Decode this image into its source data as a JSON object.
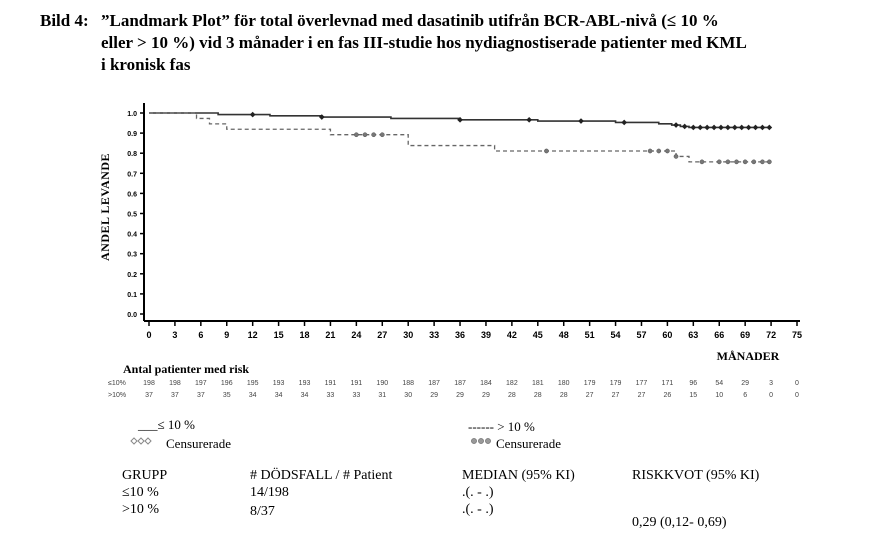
{
  "caption": {
    "label": "Bild 4:",
    "line1": "”Landmark Plot” för total överlevnad med dasatinib utifrån BCR-ABL-nivå (≤ 10 %",
    "line2": "eller > 10 %) vid 3 månader i en fas III-studie hos nydiagnostiserade patienter med KML",
    "line3": "i kronisk fas"
  },
  "chart_data": {
    "type": "line",
    "title": "”Landmark Plot” för total överlevnad med dasatinib utifrån BCR-ABL-nivå",
    "xlabel": "MÅNADER",
    "ylabel": "ANDEL LEVANDE",
    "xlim": [
      0,
      75
    ],
    "ylim": [
      0.0,
      1.0
    ],
    "x_ticks": [
      0,
      3,
      6,
      9,
      12,
      15,
      18,
      21,
      24,
      27,
      30,
      33,
      36,
      39,
      42,
      45,
      48,
      51,
      54,
      57,
      60,
      63,
      66,
      69,
      72,
      75
    ],
    "x_tick_labels": [
      "0",
      "3",
      "6",
      "9",
      "12",
      "15",
      "18",
      "21",
      "24",
      "27",
      "30",
      "33",
      "36",
      "39",
      "42",
      "45",
      "48",
      "51",
      "54",
      "57",
      "60",
      "63",
      "66",
      "69",
      "72",
      "75"
    ],
    "y_ticks": [
      0.0,
      0.1,
      0.2,
      0.3,
      0.4,
      0.5,
      0.6,
      0.7,
      0.8,
      0.9,
      1.0
    ],
    "y_tick_labels": [
      "0.0",
      "0.1",
      "0.2",
      "0.3",
      "0.4",
      "0.5",
      "0.6",
      "0.7",
      "0.8",
      "0.9",
      "1.0"
    ],
    "series": [
      {
        "name": "≤ 10 %",
        "style": "solid",
        "color": "#333333",
        "steps": [
          [
            0,
            1.0
          ],
          [
            8,
            0.992
          ],
          [
            14,
            0.986
          ],
          [
            20,
            0.98
          ],
          [
            28,
            0.973
          ],
          [
            36,
            0.966
          ],
          [
            45,
            0.96
          ],
          [
            54,
            0.953
          ],
          [
            59,
            0.946
          ],
          [
            60.5,
            0.94
          ],
          [
            61.5,
            0.933
          ],
          [
            62.5,
            0.928
          ],
          [
            72,
            0.928
          ]
        ],
        "censored": [
          12,
          20,
          36,
          44,
          50,
          55,
          61,
          62,
          63,
          63.8,
          64.6,
          65.4,
          66.2,
          67,
          67.8,
          68.6,
          69.4,
          70.2,
          71,
          71.8
        ]
      },
      {
        "name": "> 10 %",
        "style": "dashed",
        "color": "#666666",
        "steps": [
          [
            0,
            1.0
          ],
          [
            5.5,
            0.973
          ],
          [
            7,
            0.946
          ],
          [
            9,
            0.919
          ],
          [
            21,
            0.892
          ],
          [
            30,
            0.838
          ],
          [
            40,
            0.811
          ],
          [
            61,
            0.784
          ],
          [
            62.5,
            0.757
          ],
          [
            72,
            0.757
          ]
        ],
        "censored": [
          24,
          25,
          26,
          27,
          46,
          58,
          59,
          60,
          61,
          64,
          66,
          67,
          68,
          69,
          70,
          71,
          71.8
        ]
      }
    ],
    "risk_table": {
      "title": "Antal patienter med risk",
      "times": [
        0,
        3,
        6,
        9,
        12,
        15,
        18,
        21,
        24,
        27,
        30,
        33,
        36,
        39,
        42,
        45,
        48,
        51,
        54,
        57,
        60,
        63,
        66,
        69,
        72,
        75
      ],
      "rows": [
        {
          "label": "≤10%",
          "values": [
            "198",
            "198",
            "197",
            "196",
            "195",
            "193",
            "193",
            "191",
            "191",
            "190",
            "188",
            "187",
            "187",
            "184",
            "182",
            "181",
            "180",
            "179",
            "179",
            "177",
            "171",
            "96",
            "54",
            "29",
            "3",
            "0"
          ]
        },
        {
          "label": ">10%",
          "values": [
            "37",
            "37",
            "37",
            "35",
            "34",
            "34",
            "34",
            "33",
            "33",
            "31",
            "30",
            "29",
            "29",
            "29",
            "28",
            "28",
            "28",
            "27",
            "27",
            "27",
            "26",
            "15",
            "10",
            "6",
            "0",
            "0"
          ]
        }
      ]
    },
    "legend": {
      "solid_label": "___≤ 10 %",
      "solid_censor": "Censurerade",
      "dashed_label": "------ > 10 %",
      "dashed_censor": "Censurerade"
    },
    "stats_table": {
      "headers": [
        "GRUPP",
        "# DÖDSFALL / # Patient",
        "MEDIAN (95% KI)",
        "RISKKVOT (95% KI)"
      ],
      "rows": [
        [
          "≤10 %",
          "14/198",
          ".(. - .)",
          ""
        ],
        [
          ">10 %",
          "8/37",
          ".(. - .)",
          ""
        ]
      ],
      "hazard_ratio": "0,29 (0,12- 0,69)"
    }
  }
}
